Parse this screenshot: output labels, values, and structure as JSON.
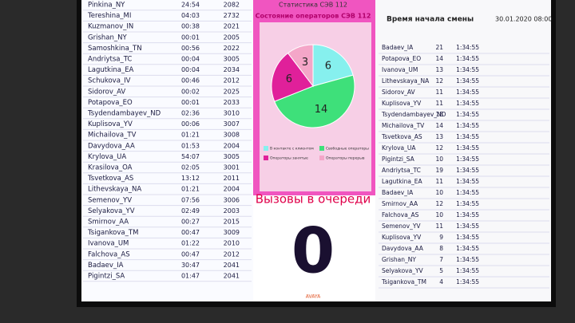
{
  "left_list": {
    "rows": [
      [
        "Pinkina_NY",
        "24:54",
        "2082"
      ],
      [
        "Tereshina_MI",
        "04:03",
        "2732"
      ],
      [
        "Kuzmanov_IN",
        "00:38",
        "2021"
      ],
      [
        "Grishan_NY",
        "00:01",
        "2005"
      ],
      [
        "Samoshkina_TN",
        "00:56",
        "2022"
      ],
      [
        "Andriytsa_TC",
        "00:04",
        "3005"
      ],
      [
        "Lagutkina_EA",
        "00:04",
        "2034"
      ],
      [
        "Schukova_IV",
        "00:46",
        "2012"
      ],
      [
        "Sidorov_AV",
        "00:02",
        "2025"
      ],
      [
        "Potapova_EO",
        "00:01",
        "2033"
      ],
      [
        "Tsydendambayev_ND",
        "02:36",
        "3010"
      ],
      [
        "Kuplisova_YV",
        "00:06",
        "3007"
      ],
      [
        "Michailova_TV",
        "01:21",
        "3008"
      ],
      [
        "Davydova_AA",
        "01:53",
        "2004"
      ],
      [
        "Krylova_UA",
        "54:07",
        "3005"
      ],
      [
        "Krasilova_OA",
        "02:05",
        "3001"
      ],
      [
        "Tsvetkova_AS",
        "13:12",
        "2011"
      ],
      [
        "Lithevskaya_NA",
        "01:21",
        "2004"
      ],
      [
        "Semenov_YV",
        "07:56",
        "3006"
      ],
      [
        "Selyakova_YV",
        "02:49",
        "2003"
      ],
      [
        "Smirnov_AA",
        "00:27",
        "2015"
      ],
      [
        "Tsigankova_TM",
        "00:47",
        "3009"
      ],
      [
        "Ivanova_UM",
        "01:22",
        "2010"
      ],
      [
        "Falchova_AS",
        "00:47",
        "2012"
      ],
      [
        "Badaev_IA",
        "30:47",
        "2041"
      ],
      [
        "Pigintzi_SA",
        "01:47",
        "2041"
      ]
    ]
  },
  "header": "Статистика СЭВ 112",
  "pie": {
    "title": "Состояние операторов СЭВ 112",
    "values": [
      6,
      14,
      6,
      3
    ],
    "colors": [
      "#86f0ee",
      "#3ee07a",
      "#e0209a",
      "#f4a6c8"
    ],
    "legend": [
      "В контакте с клиентом",
      "Свободные операторы",
      "Операторы занятые",
      "Операторы перерыв"
    ]
  },
  "queue": {
    "title": "Вызовы в очереди",
    "count": "0"
  },
  "footer": "AVAYA",
  "right_panel": {
    "title": "Время начала смены",
    "date": "30.01.2020 08:00",
    "rows": [
      [
        "Badaev_IA",
        "21",
        "1:34:55"
      ],
      [
        "Potapova_EO",
        "14",
        "1:34:55"
      ],
      [
        "Ivanova_UM",
        "13",
        "1:34:55"
      ],
      [
        "Lithevskaya_NA",
        "12",
        "1:34:55"
      ],
      [
        "Sidorov_AV",
        "11",
        "1:34:55"
      ],
      [
        "Kuplisova_YV",
        "11",
        "1:34:55"
      ],
      [
        "Tsydendambayev_ND",
        "18",
        "1:34:55"
      ],
      [
        "Michailova_TV",
        "14",
        "1:34:55"
      ],
      [
        "Tsvetkova_AS",
        "13",
        "1:34:55"
      ],
      [
        "Krylova_UA",
        "12",
        "1:34:55"
      ],
      [
        "Pigintzi_SA",
        "10",
        "1:34:55"
      ],
      [
        "Andriytsa_TC",
        "19",
        "1:34:55"
      ],
      [
        "Lagutkina_EA",
        "11",
        "1:34:55"
      ],
      [
        "Badaev_IA",
        "10",
        "1:34:55"
      ],
      [
        "Smirnov_AA",
        "12",
        "1:34:55"
      ],
      [
        "Falchova_AS",
        "10",
        "1:34:55"
      ],
      [
        "Semenov_YV",
        "11",
        "1:34:55"
      ],
      [
        "Kuplisova_YV",
        "9",
        "1:34:55"
      ],
      [
        "Davydova_AA",
        "8",
        "1:34:55"
      ],
      [
        "Grishan_NY",
        "7",
        "1:34:55"
      ],
      [
        "Selyakova_YV",
        "5",
        "1:34:55"
      ],
      [
        "Tsigankova_TM",
        "4",
        "1:34:55"
      ]
    ]
  }
}
